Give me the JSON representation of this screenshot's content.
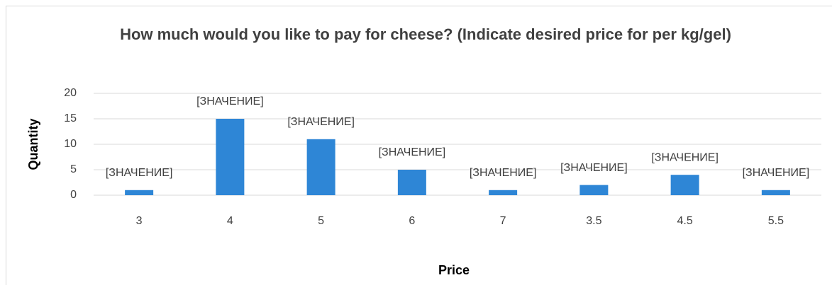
{
  "chart_data": {
    "type": "bar",
    "title": "How much would you like to pay for cheese? (Indicate  desired price for per kg/gel)",
    "x_label": "Price",
    "y_label": "Quantity",
    "categories": [
      "3",
      "4",
      "5",
      "6",
      "7",
      "3.5",
      "4.5",
      "5.5"
    ],
    "values": [
      1,
      15,
      11,
      5,
      1,
      2,
      4,
      1
    ],
    "value_labels": [
      "[ЗНАЧЕНИЕ]",
      "[ЗНАЧЕНИЕ]",
      "[ЗНАЧЕНИЕ]",
      "[ЗНАЧЕНИЕ]",
      "[ЗНАЧЕНИЕ]",
      "[ЗНАЧЕНИЕ]",
      "[ЗНАЧЕНИЕ]",
      "[ЗНАЧЕНИЕ]"
    ],
    "color": "#2e86d6",
    "ylim": [
      0,
      20
    ],
    "yticks": [
      0,
      5,
      10,
      15,
      20
    ],
    "grid": true
  }
}
